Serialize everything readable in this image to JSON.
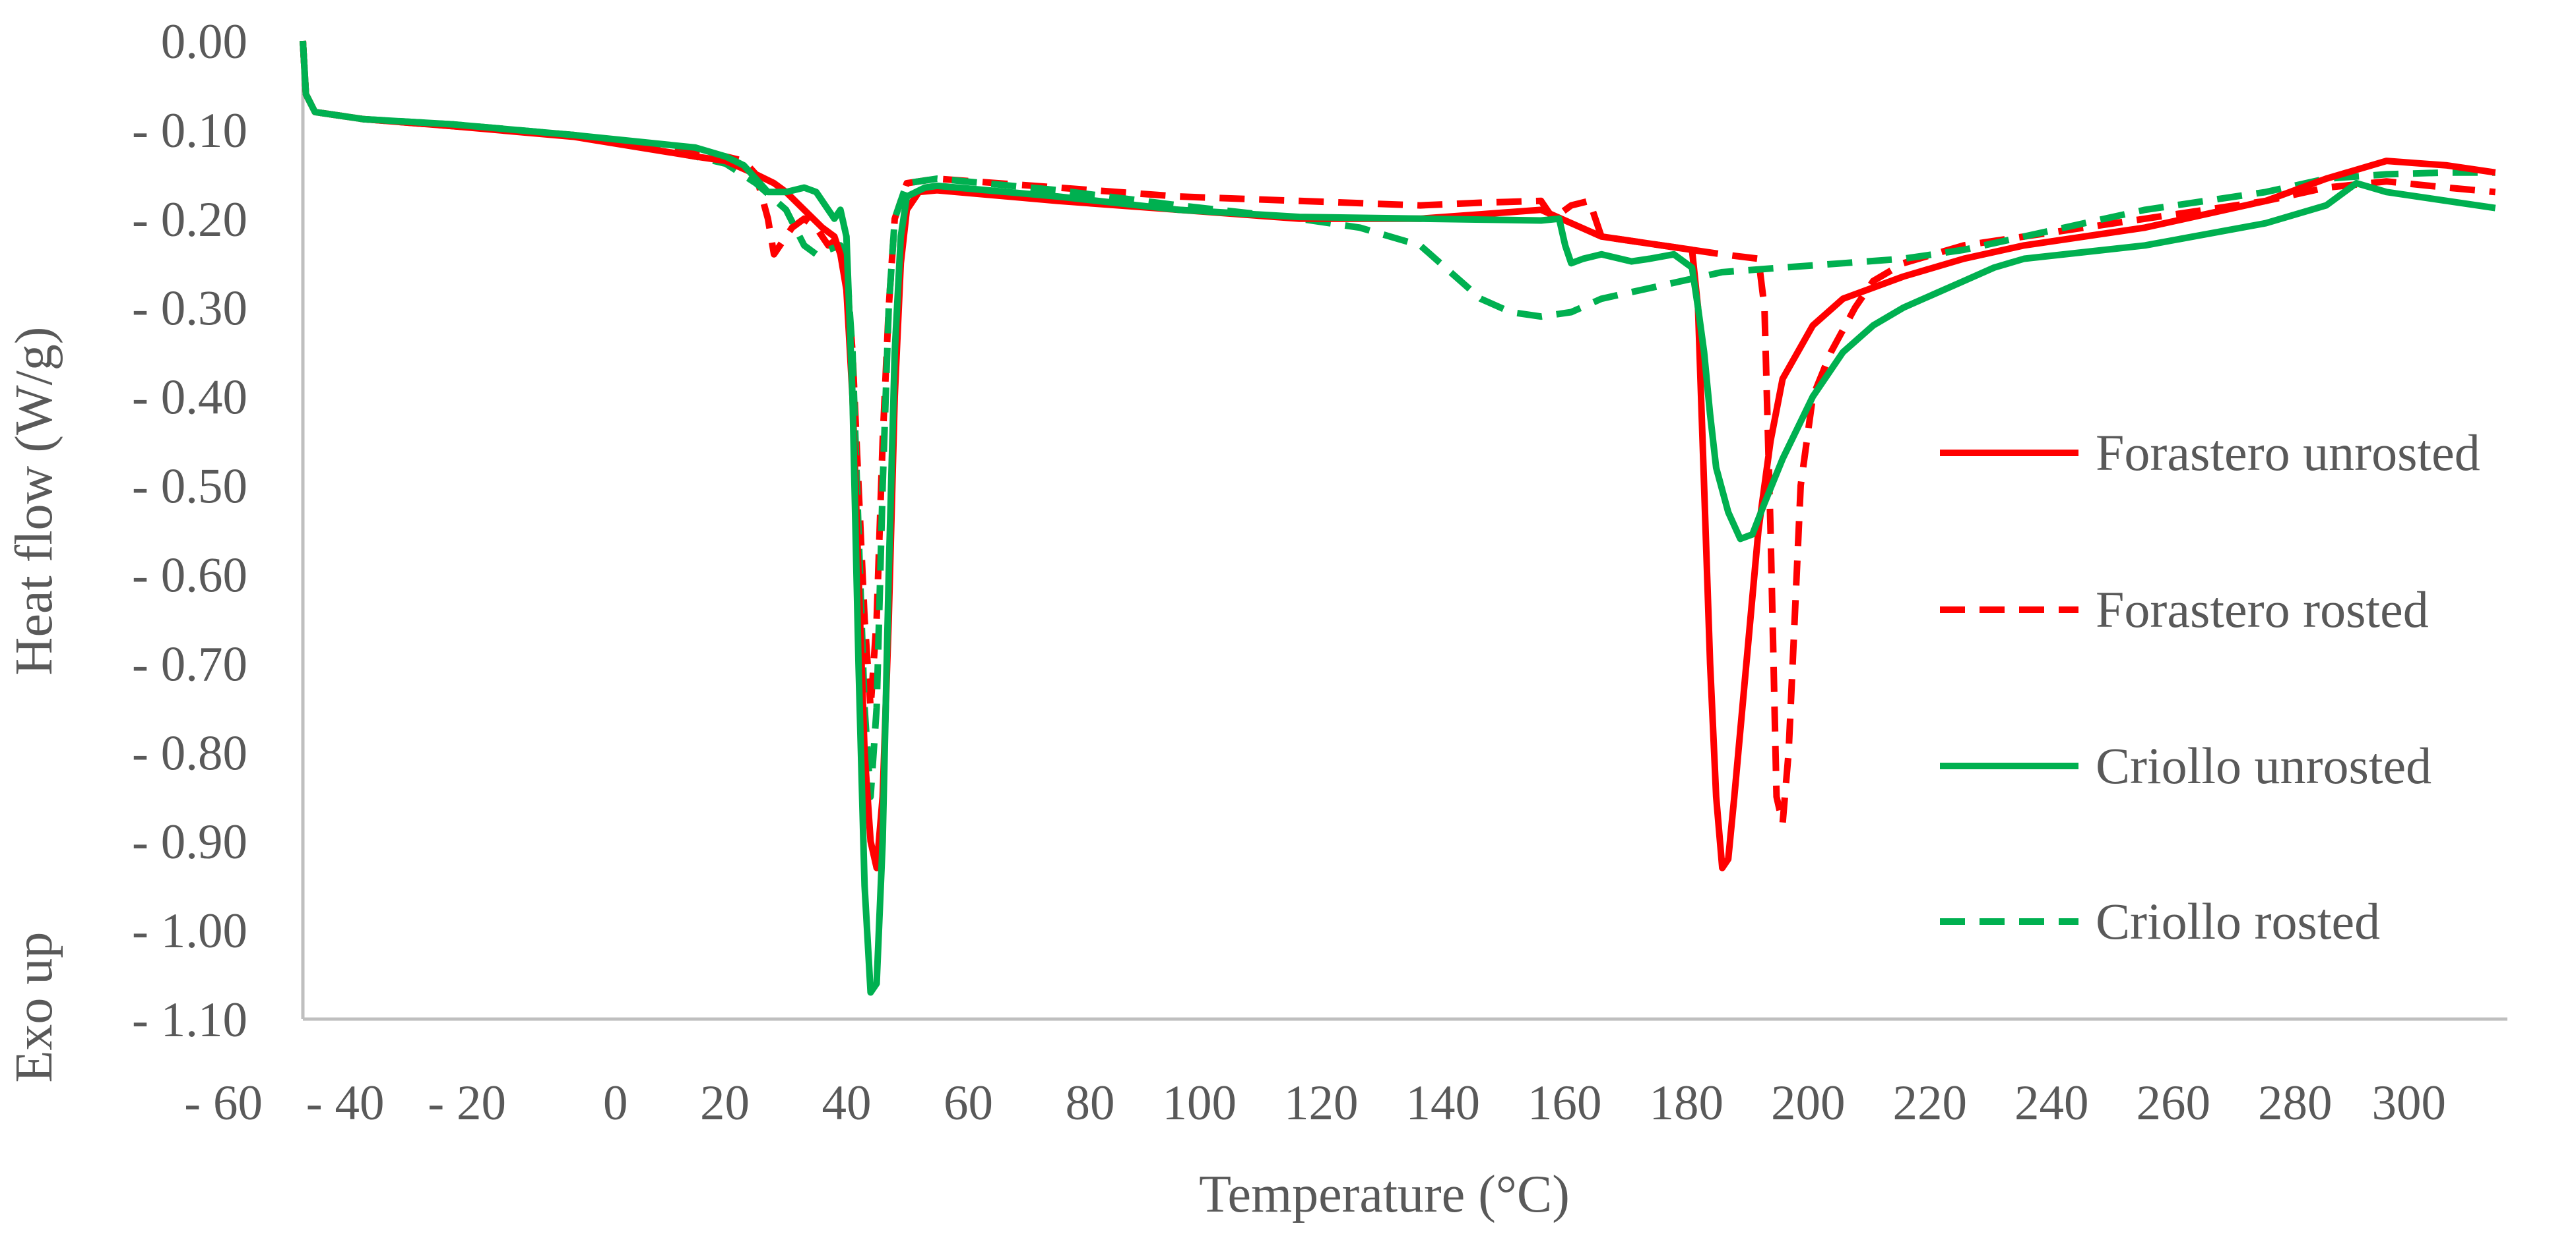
{
  "chart_data": {
    "type": "line",
    "title": "",
    "xlabel": "Temperature (°C)",
    "ylabel": "Heat flow (W/g)",
    "y_annotation": "Exo up",
    "xlim": [
      -65,
      300
    ],
    "ylim": [
      0.0,
      1.1
    ],
    "y_inverted": true,
    "grid": false,
    "legend_position": "right",
    "x_ticks": [
      -60,
      -40,
      -20,
      0,
      20,
      40,
      60,
      80,
      100,
      120,
      140,
      160,
      180,
      200,
      220,
      240,
      260,
      280,
      300
    ],
    "x_tick_labels": [
      "- 60",
      "- 40",
      "- 20",
      "0",
      "20",
      "40",
      "60",
      "80",
      "100",
      "120",
      "140",
      "160",
      "180",
      "200",
      "220",
      "240",
      "260",
      "280",
      "300"
    ],
    "y_ticks": [
      0.0,
      0.1,
      0.2,
      0.3,
      0.4,
      0.5,
      0.6,
      0.7,
      0.8,
      0.9,
      1.0,
      1.1
    ],
    "y_tick_labels": [
      "0.00",
      "- 0.10",
      "- 0.20",
      "- 0.30",
      "- 0.40",
      "- 0.50",
      "- 0.60",
      "- 0.70",
      "- 0.80",
      "- 0.90",
      "- 1.00",
      "- 1.10"
    ],
    "series": [
      {
        "name": "Forastero unrosted",
        "color": "#ff0000",
        "dash": "solid",
        "points": [
          [
            -65,
            0.0
          ],
          [
            -64.5,
            0.06
          ],
          [
            -63,
            0.08
          ],
          [
            -55,
            0.088
          ],
          [
            -40,
            0.096
          ],
          [
            -20,
            0.108
          ],
          [
            0,
            0.13
          ],
          [
            5,
            0.135
          ],
          [
            10,
            0.15
          ],
          [
            13,
            0.16
          ],
          [
            15,
            0.17
          ],
          [
            18,
            0.19
          ],
          [
            21,
            0.21
          ],
          [
            23,
            0.22
          ],
          [
            24,
            0.24
          ],
          [
            25,
            0.28
          ],
          [
            26,
            0.4
          ],
          [
            27,
            0.6
          ],
          [
            28,
            0.8
          ],
          [
            29,
            0.9
          ],
          [
            30,
            0.93
          ],
          [
            31,
            0.85
          ],
          [
            32,
            0.65
          ],
          [
            33,
            0.4
          ],
          [
            34,
            0.25
          ],
          [
            35,
            0.19
          ],
          [
            37,
            0.17
          ],
          [
            40,
            0.168
          ],
          [
            60,
            0.18
          ],
          [
            80,
            0.19
          ],
          [
            100,
            0.2
          ],
          [
            120,
            0.2
          ],
          [
            130,
            0.195
          ],
          [
            140,
            0.19
          ],
          [
            150,
            0.22
          ],
          [
            160,
            0.23
          ],
          [
            165,
            0.235
          ],
          [
            166,
            0.3
          ],
          [
            167,
            0.5
          ],
          [
            168,
            0.7
          ],
          [
            169,
            0.85
          ],
          [
            170,
            0.93
          ],
          [
            171,
            0.92
          ],
          [
            172,
            0.85
          ],
          [
            174,
            0.7
          ],
          [
            176,
            0.55
          ],
          [
            178,
            0.45
          ],
          [
            180,
            0.38
          ],
          [
            185,
            0.32
          ],
          [
            190,
            0.29
          ],
          [
            200,
            0.265
          ],
          [
            210,
            0.245
          ],
          [
            220,
            0.23
          ],
          [
            240,
            0.21
          ],
          [
            260,
            0.18
          ],
          [
            270,
            0.155
          ],
          [
            280,
            0.135
          ],
          [
            290,
            0.14
          ],
          [
            298,
            0.148
          ]
        ]
      },
      {
        "name": "Forastero rosted",
        "color": "#ff0000",
        "dash": "dashed",
        "points": [
          [
            -65,
            0.0
          ],
          [
            -64.5,
            0.06
          ],
          [
            -63,
            0.08
          ],
          [
            -55,
            0.088
          ],
          [
            -40,
            0.096
          ],
          [
            -20,
            0.106
          ],
          [
            0,
            0.125
          ],
          [
            5,
            0.13
          ],
          [
            8,
            0.135
          ],
          [
            10,
            0.15
          ],
          [
            12,
            0.2
          ],
          [
            13,
            0.24
          ],
          [
            14,
            0.23
          ],
          [
            16,
            0.21
          ],
          [
            18,
            0.2
          ],
          [
            20,
            0.21
          ],
          [
            22,
            0.23
          ],
          [
            24,
            0.22
          ],
          [
            25,
            0.26
          ],
          [
            26,
            0.35
          ],
          [
            27,
            0.5
          ],
          [
            28,
            0.65
          ],
          [
            29,
            0.75
          ],
          [
            30,
            0.65
          ],
          [
            31,
            0.45
          ],
          [
            32,
            0.3
          ],
          [
            33,
            0.2
          ],
          [
            35,
            0.16
          ],
          [
            40,
            0.155
          ],
          [
            60,
            0.165
          ],
          [
            80,
            0.175
          ],
          [
            100,
            0.18
          ],
          [
            120,
            0.185
          ],
          [
            130,
            0.182
          ],
          [
            140,
            0.18
          ],
          [
            142,
            0.2
          ],
          [
            145,
            0.185
          ],
          [
            148,
            0.18
          ],
          [
            150,
            0.22
          ],
          [
            160,
            0.23
          ],
          [
            170,
            0.24
          ],
          [
            176,
            0.245
          ],
          [
            177,
            0.3
          ],
          [
            178,
            0.55
          ],
          [
            179,
            0.85
          ],
          [
            180,
            0.88
          ],
          [
            181,
            0.8
          ],
          [
            182,
            0.65
          ],
          [
            183,
            0.5
          ],
          [
            185,
            0.4
          ],
          [
            188,
            0.35
          ],
          [
            192,
            0.3
          ],
          [
            195,
            0.27
          ],
          [
            200,
            0.25
          ],
          [
            205,
            0.24
          ],
          [
            210,
            0.23
          ],
          [
            220,
            0.22
          ],
          [
            240,
            0.2
          ],
          [
            260,
            0.18
          ],
          [
            270,
            0.165
          ],
          [
            280,
            0.158
          ],
          [
            290,
            0.165
          ],
          [
            298,
            0.17
          ]
        ]
      },
      {
        "name": "Criollo unrosted",
        "color": "#00b050",
        "dash": "solid",
        "points": [
          [
            -65,
            0.0
          ],
          [
            -64.5,
            0.06
          ],
          [
            -63,
            0.08
          ],
          [
            -55,
            0.088
          ],
          [
            -40,
            0.094
          ],
          [
            -20,
            0.106
          ],
          [
            0,
            0.12
          ],
          [
            5,
            0.13
          ],
          [
            8,
            0.14
          ],
          [
            10,
            0.155
          ],
          [
            12,
            0.17
          ],
          [
            15,
            0.17
          ],
          [
            18,
            0.165
          ],
          [
            20,
            0.17
          ],
          [
            22,
            0.19
          ],
          [
            23,
            0.2
          ],
          [
            24,
            0.19
          ],
          [
            25,
            0.22
          ],
          [
            26,
            0.4
          ],
          [
            27,
            0.7
          ],
          [
            28,
            0.95
          ],
          [
            29,
            1.07
          ],
          [
            30,
            1.06
          ],
          [
            31,
            0.9
          ],
          [
            32,
            0.6
          ],
          [
            33,
            0.35
          ],
          [
            34,
            0.22
          ],
          [
            35,
            0.175
          ],
          [
            38,
            0.165
          ],
          [
            40,
            0.163
          ],
          [
            60,
            0.175
          ],
          [
            80,
            0.19
          ],
          [
            100,
            0.198
          ],
          [
            120,
            0.2
          ],
          [
            140,
            0.202
          ],
          [
            143,
            0.2
          ],
          [
            144,
            0.23
          ],
          [
            145,
            0.25
          ],
          [
            147,
            0.245
          ],
          [
            150,
            0.24
          ],
          [
            155,
            0.248
          ],
          [
            158,
            0.245
          ],
          [
            162,
            0.24
          ],
          [
            165,
            0.255
          ],
          [
            166,
            0.3
          ],
          [
            167,
            0.35
          ],
          [
            168,
            0.42
          ],
          [
            169,
            0.48
          ],
          [
            171,
            0.53
          ],
          [
            173,
            0.56
          ],
          [
            175,
            0.555
          ],
          [
            177,
            0.52
          ],
          [
            180,
            0.47
          ],
          [
            185,
            0.4
          ],
          [
            190,
            0.35
          ],
          [
            195,
            0.32
          ],
          [
            200,
            0.3
          ],
          [
            205,
            0.285
          ],
          [
            210,
            0.27
          ],
          [
            215,
            0.255
          ],
          [
            220,
            0.245
          ],
          [
            240,
            0.23
          ],
          [
            260,
            0.205
          ],
          [
            270,
            0.185
          ],
          [
            275,
            0.16
          ],
          [
            280,
            0.17
          ],
          [
            290,
            0.18
          ],
          [
            298,
            0.188
          ]
        ]
      },
      {
        "name": "Criollo rosted",
        "color": "#00b050",
        "dash": "dashed",
        "points": [
          [
            -65,
            0.0
          ],
          [
            -64.5,
            0.06
          ],
          [
            -63,
            0.08
          ],
          [
            -55,
            0.088
          ],
          [
            -40,
            0.094
          ],
          [
            -20,
            0.106
          ],
          [
            0,
            0.13
          ],
          [
            5,
            0.138
          ],
          [
            10,
            0.16
          ],
          [
            15,
            0.19
          ],
          [
            18,
            0.23
          ],
          [
            20,
            0.24
          ],
          [
            22,
            0.235
          ],
          [
            24,
            0.23
          ],
          [
            25,
            0.25
          ],
          [
            26,
            0.35
          ],
          [
            27,
            0.55
          ],
          [
            28,
            0.75
          ],
          [
            29,
            0.85
          ],
          [
            30,
            0.75
          ],
          [
            31,
            0.5
          ],
          [
            32,
            0.3
          ],
          [
            33,
            0.2
          ],
          [
            35,
            0.16
          ],
          [
            40,
            0.155
          ],
          [
            60,
            0.168
          ],
          [
            80,
            0.185
          ],
          [
            100,
            0.2
          ],
          [
            110,
            0.21
          ],
          [
            120,
            0.23
          ],
          [
            125,
            0.26
          ],
          [
            130,
            0.29
          ],
          [
            135,
            0.305
          ],
          [
            140,
            0.31
          ],
          [
            145,
            0.305
          ],
          [
            150,
            0.29
          ],
          [
            160,
            0.275
          ],
          [
            170,
            0.26
          ],
          [
            180,
            0.255
          ],
          [
            190,
            0.25
          ],
          [
            200,
            0.245
          ],
          [
            210,
            0.235
          ],
          [
            220,
            0.22
          ],
          [
            240,
            0.19
          ],
          [
            260,
            0.17
          ],
          [
            270,
            0.155
          ],
          [
            280,
            0.15
          ],
          [
            290,
            0.148
          ],
          [
            298,
            0.148
          ]
        ]
      }
    ]
  }
}
